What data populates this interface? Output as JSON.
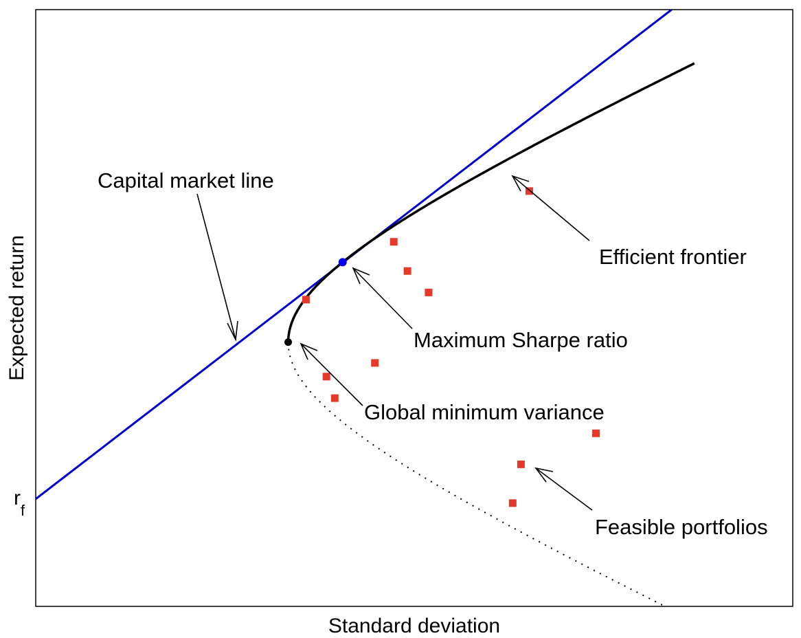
{
  "chart_data": {
    "type": "scatter",
    "title": "",
    "xlabel": "Standard deviation",
    "ylabel": "Expected return",
    "rf_label": "r",
    "rf_sub": "f",
    "xlim": [
      0,
      1
    ],
    "ylim": [
      0,
      1
    ],
    "grid": false,
    "tick_labels": false,
    "rf": 0.18,
    "cml": {
      "name": "Capital market line",
      "color": "#0000cc",
      "x": [
        0,
        0.84
      ],
      "y": [
        0.18,
        1.0
      ]
    },
    "efficient_frontier": {
      "name": "Efficient frontier",
      "color": "#000000",
      "gmv": [
        0.3335,
        0.4428
      ],
      "tangency": [
        0.4054,
        0.5768
      ],
      "end": [
        0.87,
        0.91
      ]
    },
    "feasible_portfolios": {
      "name": "Feasible portfolios",
      "color": "#e53a2b",
      "points": [
        [
          0.357,
          0.514
        ],
        [
          0.384,
          0.385
        ],
        [
          0.395,
          0.349
        ],
        [
          0.448,
          0.408
        ],
        [
          0.473,
          0.611
        ],
        [
          0.491,
          0.562
        ],
        [
          0.519,
          0.526
        ],
        [
          0.63,
          0.173
        ],
        [
          0.641,
          0.238
        ],
        [
          0.652,
          0.696
        ],
        [
          0.74,
          0.29
        ]
      ]
    },
    "annotations": [
      {
        "label": "Capital market line"
      },
      {
        "label": "Efficient frontier"
      },
      {
        "label": "Maximum Sharpe ratio"
      },
      {
        "label": "Global minimum variance"
      },
      {
        "label": "Feasible portfolios"
      }
    ]
  }
}
